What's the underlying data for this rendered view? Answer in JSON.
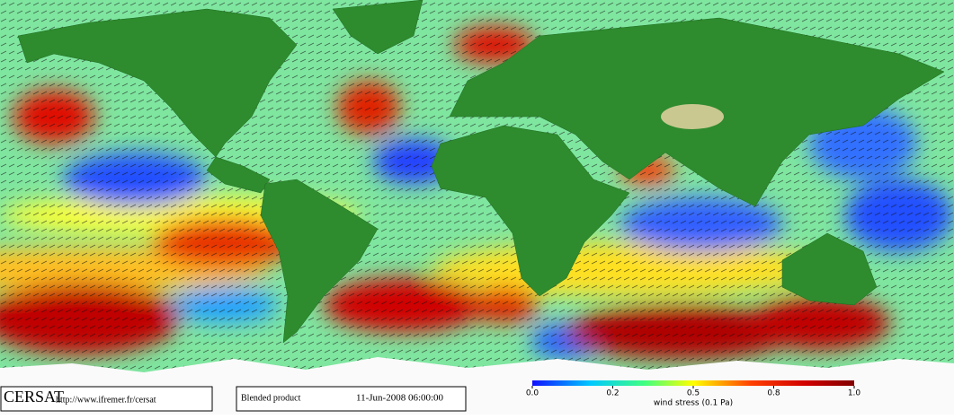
{
  "footer": {
    "logo": "CERSAT",
    "url": "http://www.ifremer.fr/cersat",
    "product": "Blended product",
    "timestamp": "11-Jun-2008 06:00:00"
  },
  "colorbar": {
    "label": "wind stress (0.1 Pa)",
    "ticks": [
      {
        "value": 0,
        "label": "0.0"
      },
      0.2,
      0.5,
      0.8,
      {
        "value": 1,
        "label": "1.0"
      }
    ]
  }
}
